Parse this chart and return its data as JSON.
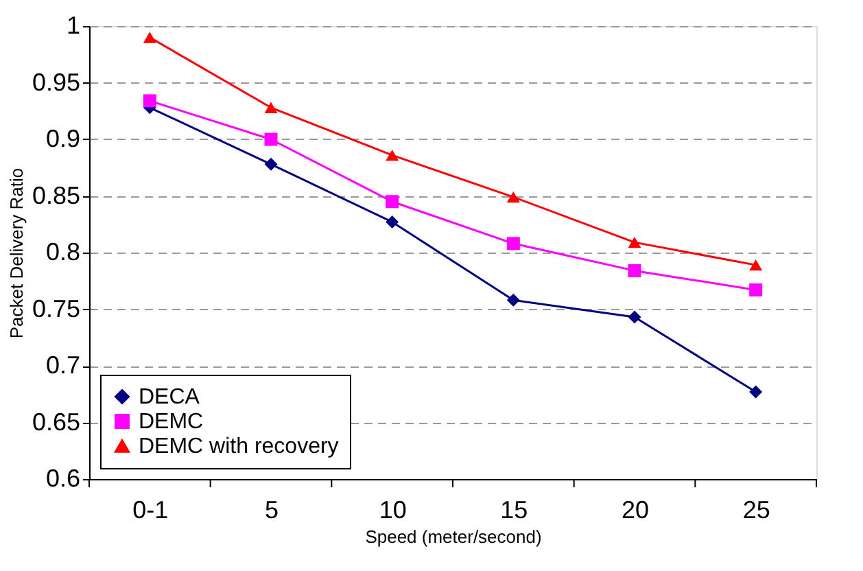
{
  "chart_data": {
    "type": "line",
    "xlabel": "Speed (meter/second)",
    "ylabel": "Packet Delivery Ratio",
    "categories": [
      "0-1",
      "5",
      "10",
      "15",
      "20",
      "25"
    ],
    "series": [
      {
        "name": "DECA",
        "color": "#000080",
        "marker": "diamond",
        "values": [
          0.928,
          0.878,
          0.827,
          0.758,
          0.743,
          0.677
        ]
      },
      {
        "name": "DEMC",
        "color": "#ff00ff",
        "marker": "square",
        "values": [
          0.934,
          0.9,
          0.845,
          0.808,
          0.784,
          0.767
        ]
      },
      {
        "name": "DEMC with recovery",
        "color": "#ff0000",
        "marker": "triangle",
        "values": [
          0.99,
          0.928,
          0.886,
          0.849,
          0.809,
          0.789
        ]
      }
    ],
    "ylim": [
      0.6,
      1
    ],
    "yticks": [
      0.6,
      0.65,
      0.7,
      0.75,
      0.8,
      0.85,
      0.9,
      0.95,
      1
    ],
    "grid": "y",
    "legend": "bottom left",
    "line_style": "solid"
  }
}
